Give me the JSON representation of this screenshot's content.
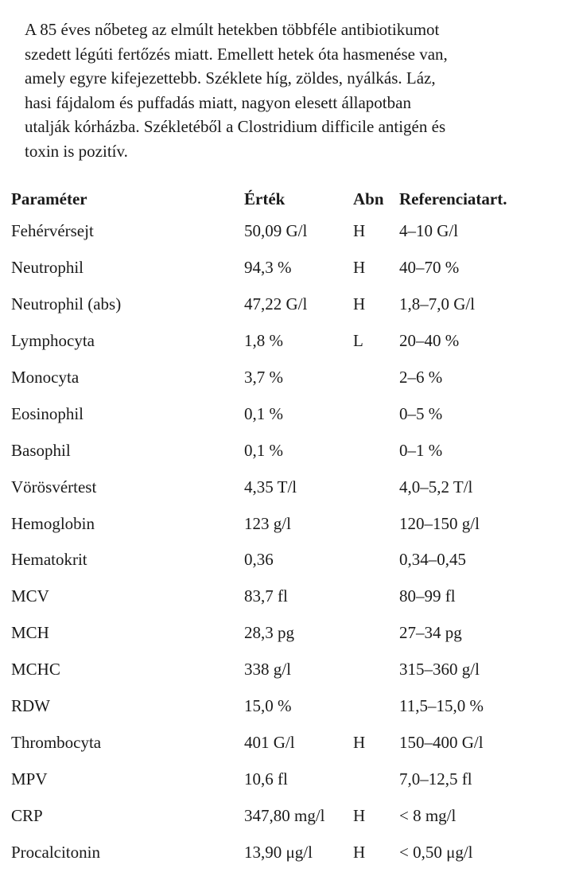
{
  "case_text": [
    "A 85 éves nőbeteg az elmúlt hetekben többféle antibiotikumot",
    "szedett légúti fertőzés miatt. Emellett hetek óta hasmenése van,",
    "amely egyre kifejezettebb. Széklete híg, zöldes, nyálkás. Láz,",
    "hasi fájdalom és puffadás miatt, nagyon elesett állapotban",
    "utalják kórházba. Székletéből a Clostridium difficile antigén és",
    "toxin is pozitív."
  ],
  "table": {
    "headers": [
      "Paraméter",
      "Érték",
      "Abn",
      "Referenciatart."
    ],
    "rows": [
      [
        "Fehérvérsejt",
        "50,09 G/l",
        "H",
        "4–10 G/l"
      ],
      [
        "Neutrophil",
        "94,3 %",
        "H",
        "40–70 %"
      ],
      [
        "Neutrophil (abs)",
        "47,22 G/l",
        "H",
        "1,8–7,0 G/l"
      ],
      [
        "Lymphocyta",
        "1,8 %",
        "L",
        "20–40 %"
      ],
      [
        "Monocyta",
        "3,7 %",
        "",
        "2–6 %"
      ],
      [
        "Eosinophil",
        "0,1 %",
        "",
        "0–5 %"
      ],
      [
        "Basophil",
        "0,1 %",
        "",
        "0–1 %"
      ],
      [
        "Vörösvértest",
        "4,35 T/l",
        "",
        "4,0–5,2 T/l"
      ],
      [
        "Hemoglobin",
        "123 g/l",
        "",
        "120–150 g/l"
      ],
      [
        "Hematokrit",
        "0,36",
        "",
        "0,34–0,45"
      ],
      [
        "MCV",
        "83,7 fl",
        "",
        "80–99 fl"
      ],
      [
        "MCH",
        "28,3 pg",
        "",
        "27–34 pg"
      ],
      [
        "MCHC",
        "338 g/l",
        "",
        "315–360 g/l"
      ],
      [
        "RDW",
        "15,0 %",
        "",
        "11,5–15,0 %"
      ],
      [
        "Thrombocyta",
        "401 G/l",
        "H",
        "150–400 G/l"
      ],
      [
        "MPV",
        "10,6 fl",
        "",
        "7,0–12,5 fl"
      ],
      [
        "CRP",
        "347,80 mg/l",
        "H",
        "< 8 mg/l"
      ],
      [
        "Procalcitonin",
        "13,90 μg/l",
        "H",
        "< 0,50  μg/l"
      ]
    ]
  }
}
